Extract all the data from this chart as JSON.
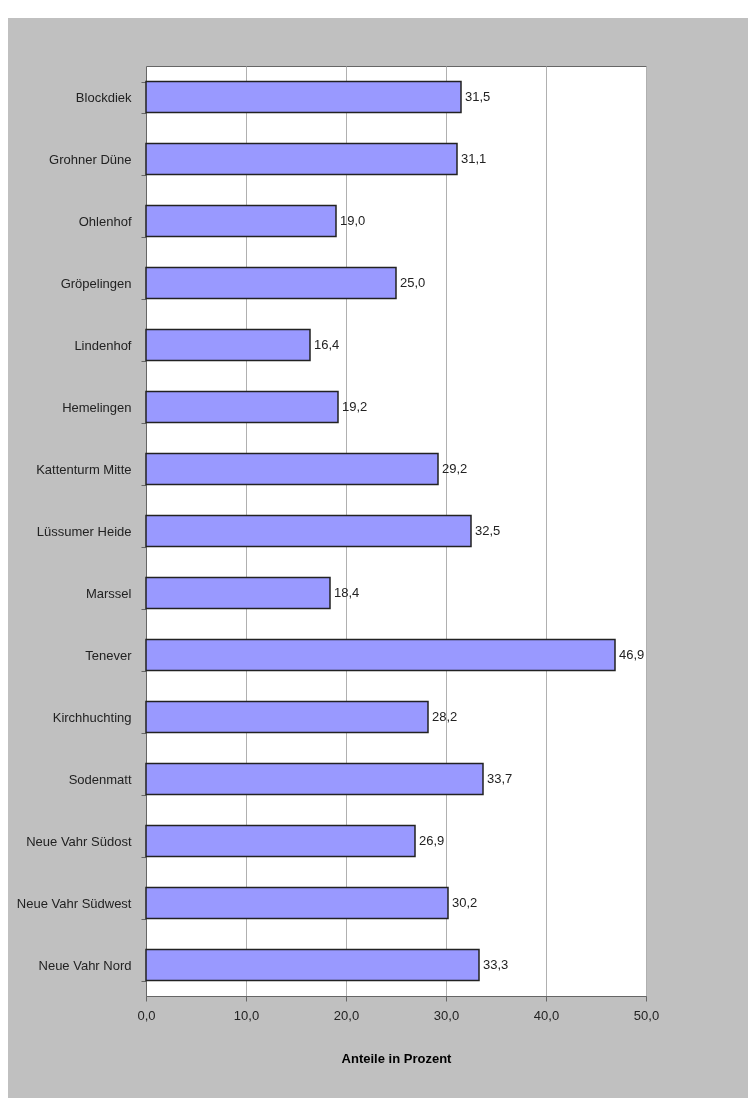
{
  "chart_data": {
    "type": "bar",
    "orientation": "horizontal",
    "xlabel": "Anteile in Prozent",
    "categories": [
      "Blockdiek",
      "Grohner Düne",
      "Ohlenhof",
      "Gröpelingen",
      "Lindenhof",
      "Hemelingen",
      "Kattenturm Mitte",
      "Lüssumer Heide",
      "Marssel",
      "Tenever",
      "Kirchhuchting",
      "Sodenmatt",
      "Neue Vahr Südost",
      "Neue Vahr Südwest",
      "Neue Vahr Nord"
    ],
    "values": [
      31.5,
      31.1,
      19.0,
      25.0,
      16.4,
      19.2,
      29.2,
      32.5,
      18.4,
      46.9,
      28.2,
      33.7,
      26.9,
      30.2,
      33.3
    ],
    "value_labels": [
      "31,5",
      "31,1",
      "19,0",
      "25,0",
      "16,4",
      "19,2",
      "29,2",
      "32,5",
      "18,4",
      "46,9",
      "28,2",
      "33,7",
      "26,9",
      "30,2",
      "33,3"
    ],
    "color": "#9999ff",
    "xlim": [
      0,
      50
    ],
    "xticks": [
      {
        "value": 0,
        "label": "0,0"
      },
      {
        "value": 10,
        "label": "10,0"
      },
      {
        "value": 20,
        "label": "20,0"
      },
      {
        "value": 30,
        "label": "30,0"
      },
      {
        "value": 40,
        "label": "40,0"
      },
      {
        "value": 50,
        "label": "50,0"
      }
    ],
    "grid": "x"
  }
}
